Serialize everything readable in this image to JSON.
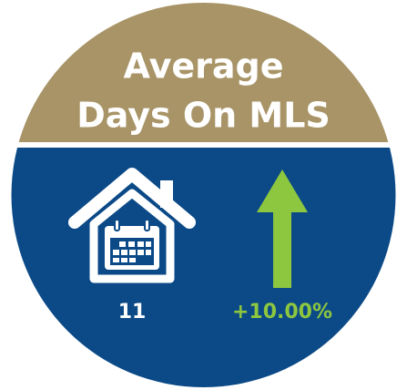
{
  "title": [
    "Average",
    "Days On MLS"
  ],
  "value": "11",
  "change": "+10.00%"
}
